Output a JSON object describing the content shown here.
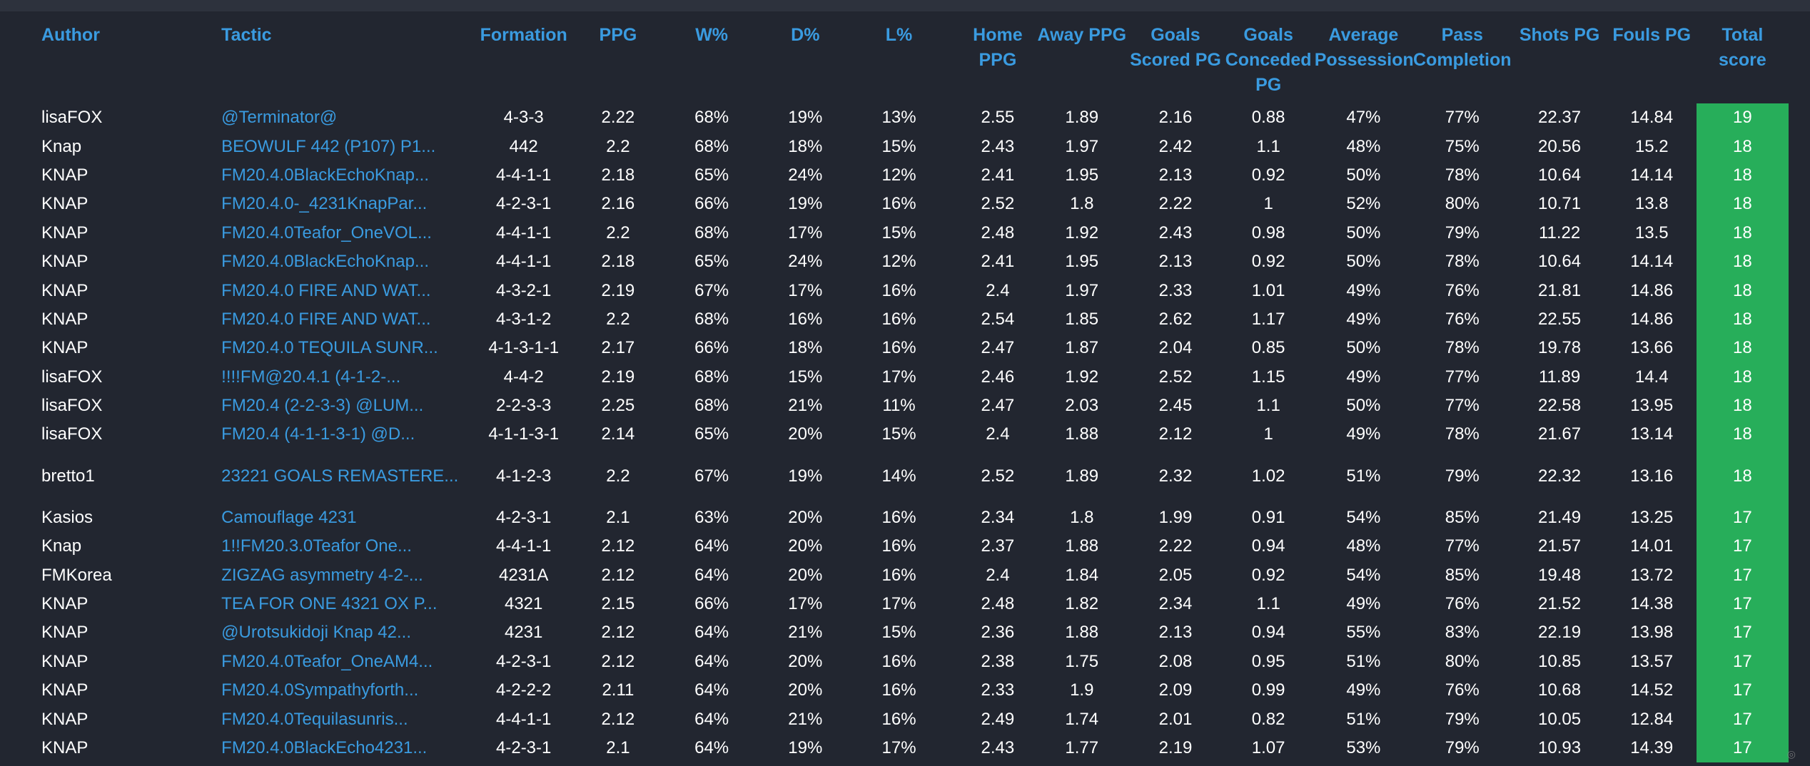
{
  "headers": {
    "author": "Author",
    "tactic": "Tactic",
    "formation": "Formation",
    "ppg": "PPG",
    "w": "W%",
    "d": "D%",
    "l": "L%",
    "home_ppg": "Home PPG",
    "away_ppg": "Away PPG",
    "goals_scored": "Goals Scored PG",
    "goals_conceded": "Goals Conceded PG",
    "possession": "Average Possession",
    "pass": "Pass Completion",
    "shots": "Shots PG",
    "fouls": "Fouls PG",
    "total": "Total score"
  },
  "rows": [
    {
      "author": "lisaFOX",
      "tactic": "@Terminator@",
      "formation": "4-3-3",
      "ppg": "2.22",
      "w": "68%",
      "d": "19%",
      "l": "13%",
      "home": "2.55",
      "away": "1.89",
      "gs": "2.16",
      "gc": "0.88",
      "poss": "47%",
      "pass": "77%",
      "shots": "22.37",
      "fouls": "14.84",
      "total": "19"
    },
    {
      "author": "Knap",
      "tactic": "BEOWULF 442 (P107) P1...",
      "formation": "442",
      "ppg": "2.2",
      "w": "68%",
      "d": "18%",
      "l": "15%",
      "home": "2.43",
      "away": "1.97",
      "gs": "2.42",
      "gc": "1.1",
      "poss": "48%",
      "pass": "75%",
      "shots": "20.56",
      "fouls": "15.2",
      "total": "18"
    },
    {
      "author": "KNAP",
      "tactic": "FM20.4.0BlackEchoKnap...",
      "formation": "4-4-1-1",
      "ppg": "2.18",
      "w": "65%",
      "d": "24%",
      "l": "12%",
      "home": "2.41",
      "away": "1.95",
      "gs": "2.13",
      "gc": "0.92",
      "poss": "50%",
      "pass": "78%",
      "shots": "10.64",
      "fouls": "14.14",
      "total": "18"
    },
    {
      "author": "KNAP",
      "tactic": "FM20.4.0-_4231KnapPar...",
      "formation": "4-2-3-1",
      "ppg": "2.16",
      "w": "66%",
      "d": "19%",
      "l": "16%",
      "home": "2.52",
      "away": "1.8",
      "gs": "2.22",
      "gc": "1",
      "poss": "52%",
      "pass": "80%",
      "shots": "10.71",
      "fouls": "13.8",
      "total": "18"
    },
    {
      "author": "KNAP",
      "tactic": "FM20.4.0Teafor_OneVOL...",
      "formation": "4-4-1-1",
      "ppg": "2.2",
      "w": "68%",
      "d": "17%",
      "l": "15%",
      "home": "2.48",
      "away": "1.92",
      "gs": "2.43",
      "gc": "0.98",
      "poss": "50%",
      "pass": "79%",
      "shots": "11.22",
      "fouls": "13.5",
      "total": "18"
    },
    {
      "author": "KNAP",
      "tactic": "FM20.4.0BlackEchoKnap...",
      "formation": "4-4-1-1",
      "ppg": "2.18",
      "w": "65%",
      "d": "24%",
      "l": "12%",
      "home": "2.41",
      "away": "1.95",
      "gs": "2.13",
      "gc": "0.92",
      "poss": "50%",
      "pass": "78%",
      "shots": "10.64",
      "fouls": "14.14",
      "total": "18"
    },
    {
      "author": "KNAP",
      "tactic": "FM20.4.0 FIRE AND WAT...",
      "formation": "4-3-2-1",
      "ppg": "2.19",
      "w": "67%",
      "d": "17%",
      "l": "16%",
      "home": "2.4",
      "away": "1.97",
      "gs": "2.33",
      "gc": "1.01",
      "poss": "49%",
      "pass": "76%",
      "shots": "21.81",
      "fouls": "14.86",
      "total": "18"
    },
    {
      "author": "KNAP",
      "tactic": "FM20.4.0 FIRE AND WAT...",
      "formation": "4-3-1-2",
      "ppg": "2.2",
      "w": "68%",
      "d": "16%",
      "l": "16%",
      "home": "2.54",
      "away": "1.85",
      "gs": "2.62",
      "gc": "1.17",
      "poss": "49%",
      "pass": "76%",
      "shots": "22.55",
      "fouls": "14.86",
      "total": "18"
    },
    {
      "author": "KNAP",
      "tactic": "FM20.4.0 TEQUILA SUNR...",
      "formation": "4-1-3-1-1",
      "ppg": "2.17",
      "w": "66%",
      "d": "18%",
      "l": "16%",
      "home": "2.47",
      "away": "1.87",
      "gs": "2.04",
      "gc": "0.85",
      "poss": "50%",
      "pass": "78%",
      "shots": "19.78",
      "fouls": "13.66",
      "total": "18"
    },
    {
      "author": "lisaFOX",
      "tactic": "!!!!FM@20.4.1 (4-1-2-...",
      "formation": "4-4-2",
      "ppg": "2.19",
      "w": "68%",
      "d": "15%",
      "l": "17%",
      "home": "2.46",
      "away": "1.92",
      "gs": "2.52",
      "gc": "1.15",
      "poss": "49%",
      "pass": "77%",
      "shots": "11.89",
      "fouls": "14.4",
      "total": "18"
    },
    {
      "author": "lisaFOX",
      "tactic": "FM20.4 (2-2-3-3) @LUM...",
      "formation": "2-2-3-3",
      "ppg": "2.25",
      "w": "68%",
      "d": "21%",
      "l": "11%",
      "home": "2.47",
      "away": "2.03",
      "gs": "2.45",
      "gc": "1.1",
      "poss": "50%",
      "pass": "77%",
      "shots": "22.58",
      "fouls": "13.95",
      "total": "18"
    },
    {
      "author": "lisaFOX",
      "tactic": "FM20.4 (4-1-1-3-1) @D...",
      "formation": "4-1-1-3-1",
      "ppg": "2.14",
      "w": "65%",
      "d": "20%",
      "l": "15%",
      "home": "2.4",
      "away": "1.88",
      "gs": "2.12",
      "gc": "1",
      "poss": "49%",
      "pass": "78%",
      "shots": "21.67",
      "fouls": "13.14",
      "total": "18"
    },
    {
      "author": "bretto1",
      "tactic": "23221 GOALS REMASTERE...",
      "formation": "4-1-2-3",
      "ppg": "2.2",
      "w": "67%",
      "d": "19%",
      "l": "14%",
      "home": "2.52",
      "away": "1.89",
      "gs": "2.32",
      "gc": "1.02",
      "poss": "51%",
      "pass": "79%",
      "shots": "22.32",
      "fouls": "13.16",
      "total": "18"
    },
    {
      "author": "Kasios",
      "tactic": "Camouflage 4231",
      "formation": "4-2-3-1",
      "ppg": "2.1",
      "w": "63%",
      "d": "20%",
      "l": "16%",
      "home": "2.34",
      "away": "1.8",
      "gs": "1.99",
      "gc": "0.91",
      "poss": "54%",
      "pass": "85%",
      "shots": "21.49",
      "fouls": "13.25",
      "total": "17"
    },
    {
      "author": "Knap",
      "tactic": "1!!FM20.3.0Teafor One...",
      "formation": "4-4-1-1",
      "ppg": "2.12",
      "w": "64%",
      "d": "20%",
      "l": "16%",
      "home": "2.37",
      "away": "1.88",
      "gs": "2.22",
      "gc": "0.94",
      "poss": "48%",
      "pass": "77%",
      "shots": "21.57",
      "fouls": "14.01",
      "total": "17"
    },
    {
      "author": "FMKorea",
      "tactic": "ZIGZAG asymmetry 4-2-...",
      "formation": "4231A",
      "ppg": "2.12",
      "w": "64%",
      "d": "20%",
      "l": "16%",
      "home": "2.4",
      "away": "1.84",
      "gs": "2.05",
      "gc": "0.92",
      "poss": "54%",
      "pass": "85%",
      "shots": "19.48",
      "fouls": "13.72",
      "total": "17"
    },
    {
      "author": "KNAP",
      "tactic": "TEA FOR ONE 4321 OX P...",
      "formation": "4321",
      "ppg": "2.15",
      "w": "66%",
      "d": "17%",
      "l": "17%",
      "home": "2.48",
      "away": "1.82",
      "gs": "2.34",
      "gc": "1.1",
      "poss": "49%",
      "pass": "76%",
      "shots": "21.52",
      "fouls": "14.38",
      "total": "17"
    },
    {
      "author": "KNAP",
      "tactic": "@Urotsukidoji Knap 42...",
      "formation": "4231",
      "ppg": "2.12",
      "w": "64%",
      "d": "21%",
      "l": "15%",
      "home": "2.36",
      "away": "1.88",
      "gs": "2.13",
      "gc": "0.94",
      "poss": "55%",
      "pass": "83%",
      "shots": "22.19",
      "fouls": "13.98",
      "total": "17"
    },
    {
      "author": "KNAP",
      "tactic": "FM20.4.0Teafor_OneAM4...",
      "formation": "4-2-3-1",
      "ppg": "2.12",
      "w": "64%",
      "d": "20%",
      "l": "16%",
      "home": "2.38",
      "away": "1.75",
      "gs": "2.08",
      "gc": "0.95",
      "poss": "51%",
      "pass": "80%",
      "shots": "10.85",
      "fouls": "13.57",
      "total": "17"
    },
    {
      "author": "KNAP",
      "tactic": "FM20.4.0Sympathyforth...",
      "formation": "4-2-2-2",
      "ppg": "2.11",
      "w": "64%",
      "d": "20%",
      "l": "16%",
      "home": "2.33",
      "away": "1.9",
      "gs": "2.09",
      "gc": "0.99",
      "poss": "49%",
      "pass": "76%",
      "shots": "10.68",
      "fouls": "14.52",
      "total": "17"
    },
    {
      "author": "KNAP",
      "tactic": "FM20.4.0Tequilasunris...",
      "formation": "4-4-1-1",
      "ppg": "2.12",
      "w": "64%",
      "d": "21%",
      "l": "16%",
      "home": "2.49",
      "away": "1.74",
      "gs": "2.01",
      "gc": "0.82",
      "poss": "51%",
      "pass": "79%",
      "shots": "10.05",
      "fouls": "12.84",
      "total": "17"
    },
    {
      "author": "KNAP",
      "tactic": "FM20.4.0BlackEcho4231...",
      "formation": "4-2-3-1",
      "ppg": "2.1",
      "w": "64%",
      "d": "19%",
      "l": "17%",
      "home": "2.43",
      "away": "1.77",
      "gs": "2.19",
      "gc": "1.07",
      "poss": "53%",
      "pass": "79%",
      "shots": "10.93",
      "fouls": "14.39",
      "total": "17"
    }
  ]
}
